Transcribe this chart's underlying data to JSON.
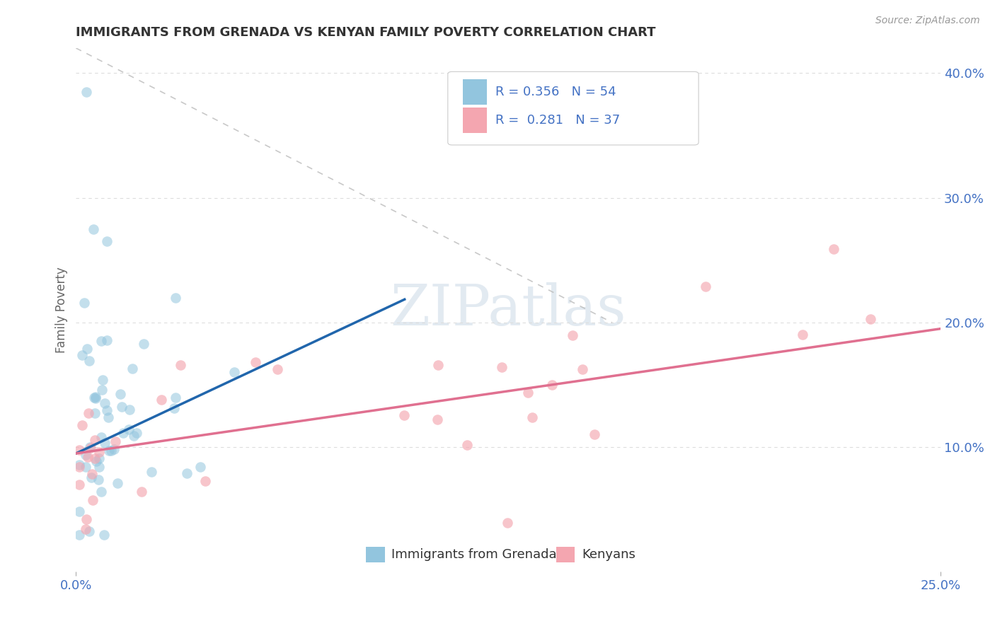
{
  "title": "IMMIGRANTS FROM GRENADA VS KENYAN FAMILY POVERTY CORRELATION CHART",
  "source": "Source: ZipAtlas.com",
  "ylabel": "Family Poverty",
  "xlim": [
    0.0,
    0.25
  ],
  "ylim": [
    0.0,
    0.42
  ],
  "watermark_text": "ZIPatlas",
  "series1_color": "#92c5de",
  "series2_color": "#f4a6b0",
  "series1_label": "Immigrants from Grenada",
  "series2_label": "Kenyans",
  "series1_R": 0.356,
  "series1_N": 54,
  "series2_R": 0.281,
  "series2_N": 37,
  "series1_line_color": "#2166ac",
  "series2_line_color": "#e07090",
  "diag_line_color": "#bbbbbb",
  "background_color": "#ffffff",
  "title_color": "#333333",
  "tick_color": "#4472c4",
  "ylabel_color": "#666666",
  "legend_text_color": "#4472c4",
  "grid_color": "#dddddd",
  "source_color": "#999999",
  "bottom_legend_color": "#333333"
}
